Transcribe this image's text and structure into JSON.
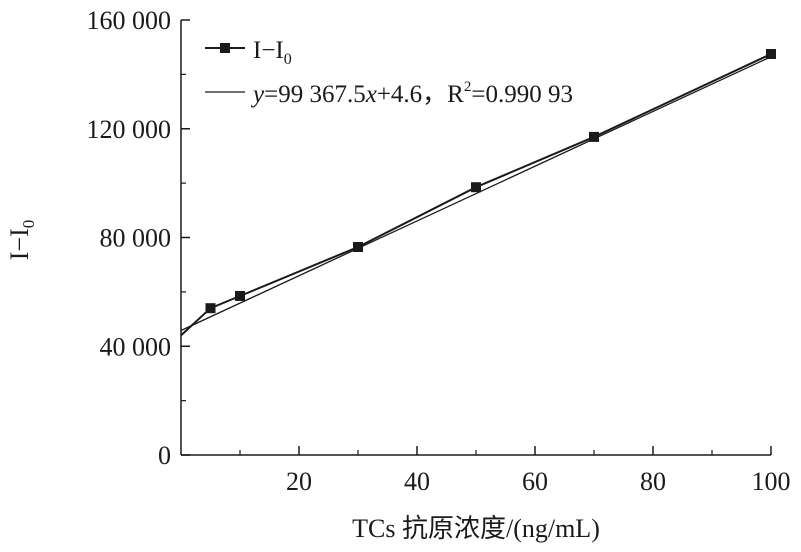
{
  "chart_data": {
    "type": "line",
    "xlabel": "TCs 抗原浓度/(ng/mL)",
    "ylabel": "I−I",
    "ylabel_sub": "0",
    "xlim": [
      0,
      100
    ],
    "ylim": [
      0,
      160000
    ],
    "xticks": [
      20,
      40,
      60,
      80,
      100
    ],
    "xtick_labels": [
      "20",
      "40",
      "60",
      "80",
      "100"
    ],
    "yticks": [
      0,
      40000,
      80000,
      120000,
      160000
    ],
    "ytick_labels": [
      "0",
      "40 000",
      "80 000",
      "120 000",
      "160 000"
    ],
    "grid": false,
    "legend_position": "top-left",
    "series": [
      {
        "name": "I−I",
        "name_sub": "0",
        "marker": "square",
        "color": "#1a1a1a",
        "x": [
          0,
          5,
          10,
          30,
          50,
          70,
          100
        ],
        "y": [
          44000,
          54000,
          58500,
          76500,
          98500,
          117000,
          147500
        ]
      }
    ],
    "fit": {
      "legend_parts": {
        "y": "y",
        "eq1": "=99 367.5",
        "x": "x",
        "eq2": "+4.6，R",
        "sup": "2",
        "eq3": "=0.990 93"
      },
      "color": "#1a1a1a",
      "x": [
        0,
        100
      ],
      "y": [
        45800,
        146500
      ]
    }
  }
}
